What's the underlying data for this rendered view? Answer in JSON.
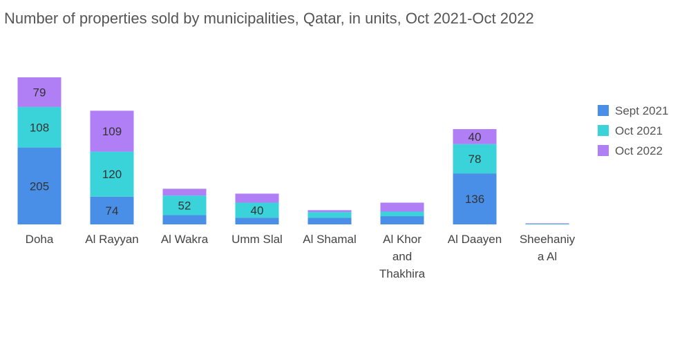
{
  "chart_data": {
    "type": "bar",
    "stacked": true,
    "title": "Number of properties sold by municipalities, Qatar, in units, Oct 2021-Oct 2022",
    "categories": [
      [
        "Doha"
      ],
      [
        "Al Rayyan"
      ],
      [
        "Al Wakra"
      ],
      [
        "Umm Slal"
      ],
      [
        "Al Shamal"
      ],
      [
        "Al Khor",
        "and",
        "Thakhira"
      ],
      [
        "Al Daayen"
      ],
      [
        "Sheehaniy",
        "a Al"
      ]
    ],
    "series": [
      {
        "name": "Sept 2021",
        "color": "#4a8fe7",
        "values": [
          205,
          74,
          25,
          18,
          18,
          22,
          136,
          1
        ]
      },
      {
        "name": "Oct 2021",
        "color": "#3ad3d9",
        "values": [
          108,
          120,
          52,
          40,
          15,
          12,
          78,
          1
        ]
      },
      {
        "name": "Oct 2022",
        "color": "#b07ef5",
        "values": [
          79,
          109,
          18,
          24,
          5,
          24,
          40,
          1
        ]
      }
    ],
    "data_labels": [
      [
        "205",
        "74",
        "",
        "",
        "",
        "",
        "136",
        ""
      ],
      [
        "108",
        "120",
        "52",
        "40",
        "",
        "",
        "78",
        ""
      ],
      [
        "79",
        "109",
        "",
        "",
        "",
        "",
        "40",
        ""
      ]
    ],
    "legend_position": "right",
    "grid": false
  }
}
